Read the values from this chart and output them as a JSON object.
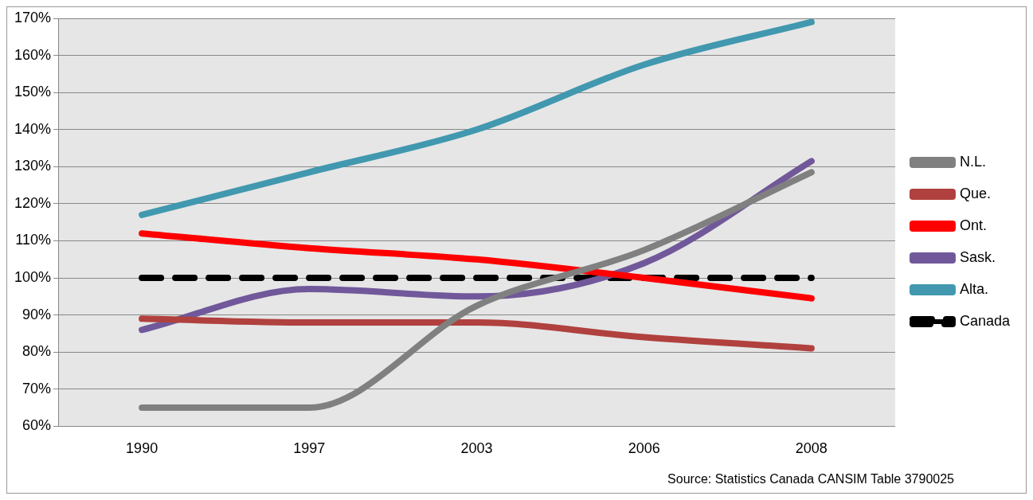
{
  "chart_data": {
    "type": "line",
    "categories": [
      "1990",
      "1997",
      "2003",
      "2006",
      "2008"
    ],
    "series": [
      {
        "name": "N.L.",
        "color": "#808080",
        "values": [
          65,
          65,
          92.5,
          107.5,
          128.5
        ]
      },
      {
        "name": "Que.",
        "color": "#b0413e",
        "values": [
          89,
          88,
          88,
          84,
          81
        ]
      },
      {
        "name": "Ont.",
        "color": "#ff0000",
        "values": [
          112,
          108,
          105,
          100,
          94.5
        ]
      },
      {
        "name": "Sask.",
        "color": "#71589a",
        "values": [
          86,
          97,
          95,
          104,
          131.5
        ]
      },
      {
        "name": "Alta.",
        "color": "#4198af",
        "values": [
          117,
          128.5,
          140,
          157.5,
          169
        ]
      },
      {
        "name": "Canada",
        "color": "#000000",
        "values": [
          100,
          100,
          100,
          100,
          100
        ],
        "line_style": "dashed"
      }
    ],
    "ylim": [
      60,
      170
    ],
    "yticks": [
      {
        "value": 60,
        "label": "60%"
      },
      {
        "value": 70,
        "label": "70%"
      },
      {
        "value": 80,
        "label": "80%"
      },
      {
        "value": 90,
        "label": "90%"
      },
      {
        "value": 100,
        "label": "100%"
      },
      {
        "value": 110,
        "label": "110%"
      },
      {
        "value": 120,
        "label": "120%"
      },
      {
        "value": 130,
        "label": "130%"
      },
      {
        "value": 140,
        "label": "140%"
      },
      {
        "value": 150,
        "label": "150%"
      },
      {
        "value": 160,
        "label": "160%"
      },
      {
        "value": 170,
        "label": "170%"
      }
    ],
    "grid": "y",
    "legend": "right",
    "marker": "none",
    "line_style": "solid",
    "annotations": [
      "Source: Statistics Canada CANSIM Table 3790025"
    ]
  }
}
